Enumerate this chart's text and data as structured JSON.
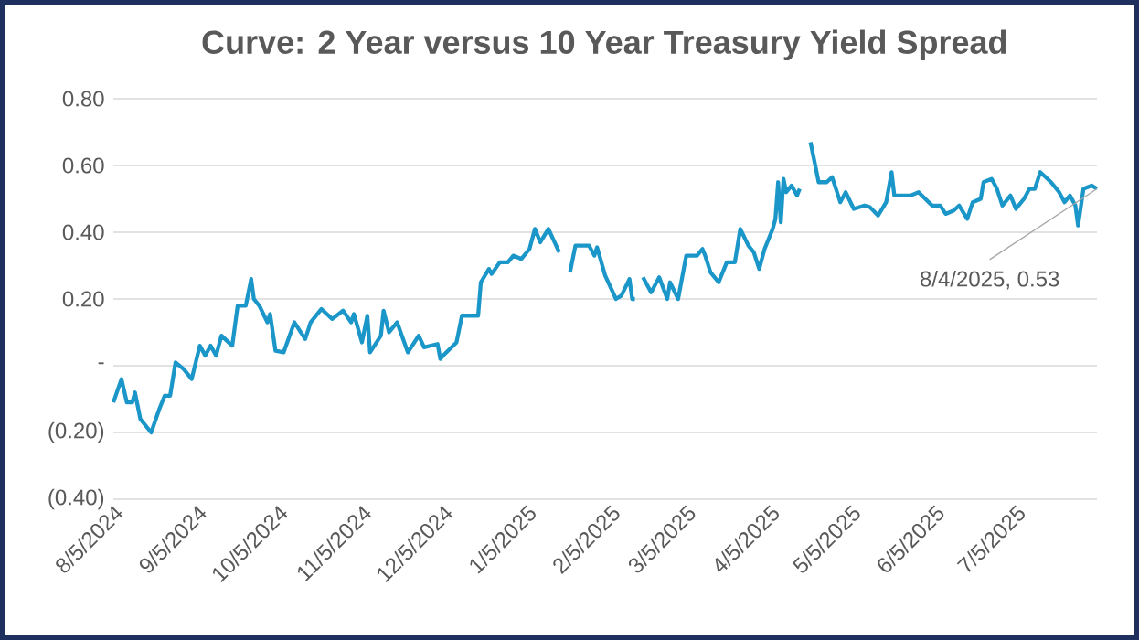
{
  "chart_data": {
    "type": "line",
    "title": "Curve: 2 Year versus 10 Year Treasury Yield Spread",
    "x": [
      "2024-08-05",
      "2024-08-08",
      "2024-08-10",
      "2024-08-12",
      "2024-08-13",
      "2024-08-15",
      "2024-08-19",
      "2024-08-22",
      "2024-08-24",
      "2024-08-26",
      "2024-08-28",
      "2024-08-31",
      "2024-09-03",
      "2024-09-06",
      "2024-09-08",
      "2024-09-10",
      "2024-09-12",
      "2024-09-14",
      "2024-09-18",
      "2024-09-20",
      "2024-09-23",
      "2024-09-25",
      "2024-09-26",
      "2024-09-28",
      "2024-10-01",
      "2024-10-02",
      "2024-10-04",
      "2024-10-07",
      "2024-10-11",
      "2024-10-15",
      "2024-10-17",
      "2024-10-21",
      "2024-10-25",
      "2024-10-29",
      "2024-11-01",
      "2024-11-02",
      "2024-11-05",
      "2024-11-07",
      "2024-11-08",
      "2024-11-12",
      "2024-11-13",
      "2024-11-15",
      "2024-11-18",
      "2024-11-22",
      "2024-11-26",
      "2024-11-28",
      "2024-12-03",
      "2024-12-04",
      "2024-12-05",
      "2024-12-10",
      "2024-12-12",
      "2024-12-18",
      "2024-12-19",
      "2024-12-22",
      "2024-12-23",
      "2024-12-26",
      "2024-12-29",
      "2024-12-31",
      "2025-01-03",
      "2025-01-06",
      "2025-01-08",
      "2025-01-10",
      "2025-01-13",
      "2025-01-17",
      "2025-01-20",
      "2025-01-21",
      "2025-01-23",
      "2025-01-28",
      "2025-01-30",
      "2025-01-31",
      "2025-02-03",
      "2025-02-07",
      "2025-02-09",
      "2025-02-12",
      "2025-02-13",
      "2025-02-14",
      "2025-02-16",
      "2025-02-17",
      "2025-02-20",
      "2025-02-23",
      "2025-02-26",
      "2025-02-27",
      "2025-03-02",
      "2025-03-05",
      "2025-03-09",
      "2025-03-11",
      "2025-03-12",
      "2025-03-14",
      "2025-03-17",
      "2025-03-20",
      "2025-03-23",
      "2025-03-25",
      "2025-03-28",
      "2025-03-30",
      "2025-04-01",
      "2025-04-03",
      "2025-04-06",
      "2025-04-07",
      "2025-04-08",
      "2025-04-09",
      "2025-04-10",
      "2025-04-11",
      "2025-04-13",
      "2025-04-15",
      "2025-04-16",
      "2025-04-19",
      "2025-04-20",
      "2025-04-23",
      "2025-04-26",
      "2025-04-28",
      "2025-04-29",
      "2025-05-01",
      "2025-05-03",
      "2025-05-06",
      "2025-05-10",
      "2025-05-12",
      "2025-05-15",
      "2025-05-18",
      "2025-05-20",
      "2025-05-21",
      "2025-05-27",
      "2025-05-30",
      "2025-06-04",
      "2025-06-07",
      "2025-06-09",
      "2025-06-12",
      "2025-06-14",
      "2025-06-17",
      "2025-06-19",
      "2025-06-22",
      "2025-06-23",
      "2025-06-26",
      "2025-06-28",
      "2025-06-30",
      "2025-07-03",
      "2025-07-05",
      "2025-07-08",
      "2025-07-10",
      "2025-07-12",
      "2025-07-14",
      "2025-07-18",
      "2025-07-21",
      "2025-07-23",
      "2025-07-25",
      "2025-07-27",
      "2025-07-28",
      "2025-07-30",
      "2025-08-02",
      "2025-08-04"
    ],
    "series": [
      {
        "color": "#1a96c8",
        "values": [
          -0.11,
          -0.04,
          -0.11,
          -0.11,
          -0.08,
          -0.16,
          -0.2,
          -0.13,
          -0.09,
          -0.09,
          0.01,
          -0.01,
          -0.04,
          0.06,
          0.03,
          0.06,
          0.03,
          0.09,
          0.06,
          0.18,
          0.18,
          0.26,
          0.2,
          0.18,
          0.13,
          0.155,
          0.045,
          0.04,
          0.13,
          0.08,
          0.13,
          0.17,
          0.14,
          0.165,
          0.13,
          0.155,
          0.07,
          0.15,
          0.04,
          0.09,
          0.165,
          0.1,
          0.13,
          0.04,
          0.09,
          0.055,
          0.065,
          0.02,
          0.03,
          0.07,
          0.15,
          0.15,
          0.25,
          0.29,
          0.275,
          0.31,
          0.31,
          0.33,
          0.32,
          0.35,
          0.41,
          0.37,
          0.41,
          0.34,
          null,
          0.28,
          0.36,
          0.36,
          0.33,
          0.355,
          0.27,
          0.2,
          0.21,
          0.26,
          0.2,
          0.2,
          null,
          0.265,
          0.22,
          0.265,
          0.2,
          0.25,
          0.2,
          0.33,
          0.33,
          0.35,
          0.33,
          0.28,
          0.25,
          0.31,
          0.31,
          0.41,
          0.36,
          0.34,
          0.29,
          0.35,
          0.41,
          0.44,
          0.55,
          0.43,
          0.56,
          0.52,
          0.54,
          0.51,
          0.53,
          null,
          0.67,
          0.55,
          0.55,
          0.565,
          0.54,
          0.49,
          0.52,
          0.47,
          0.48,
          0.475,
          0.45,
          0.49,
          0.58,
          0.51,
          0.51,
          0.52,
          0.48,
          0.48,
          0.455,
          0.465,
          0.48,
          0.44,
          0.49,
          0.5,
          0.55,
          0.56,
          0.53,
          0.48,
          0.51,
          0.47,
          0.5,
          0.53,
          0.53,
          0.58,
          0.55,
          0.52,
          0.49,
          0.51,
          0.48,
          0.42,
          0.53,
          0.54,
          0.53
        ]
      }
    ],
    "xlim": [
      "2024-08-05",
      "2025-08-04"
    ],
    "xticks": [
      {
        "value": "2024-08-05",
        "label": "8/5/2024"
      },
      {
        "value": "2024-09-05",
        "label": "9/5/2024"
      },
      {
        "value": "2024-10-05",
        "label": "10/5/2024"
      },
      {
        "value": "2024-11-05",
        "label": "11/5/2024"
      },
      {
        "value": "2024-12-05",
        "label": "12/5/2024"
      },
      {
        "value": "2025-01-05",
        "label": "1/5/2025"
      },
      {
        "value": "2025-02-05",
        "label": "2/5/2025"
      },
      {
        "value": "2025-03-05",
        "label": "3/5/2025"
      },
      {
        "value": "2025-04-05",
        "label": "4/5/2025"
      },
      {
        "value": "2025-05-05",
        "label": "5/5/2025"
      },
      {
        "value": "2025-06-05",
        "label": "6/5/2025"
      },
      {
        "value": "2025-07-05",
        "label": "7/5/2025"
      }
    ],
    "ylim": [
      -0.4,
      0.8
    ],
    "yticks": [
      {
        "value": -0.4,
        "label": "(0.40)"
      },
      {
        "value": -0.2,
        "label": "(0.20)"
      },
      {
        "value": 0,
        "label": "-"
      },
      {
        "value": 0.2,
        "label": "0.20"
      },
      {
        "value": 0.4,
        "label": "0.40"
      },
      {
        "value": 0.6,
        "label": "0.60"
      },
      {
        "value": 0.8,
        "label": "0.80"
      }
    ],
    "grid": "y",
    "annotations": [
      {
        "text": "8/4/2025, 0.53",
        "x": "2025-08-04",
        "y": 0.53
      }
    ]
  }
}
